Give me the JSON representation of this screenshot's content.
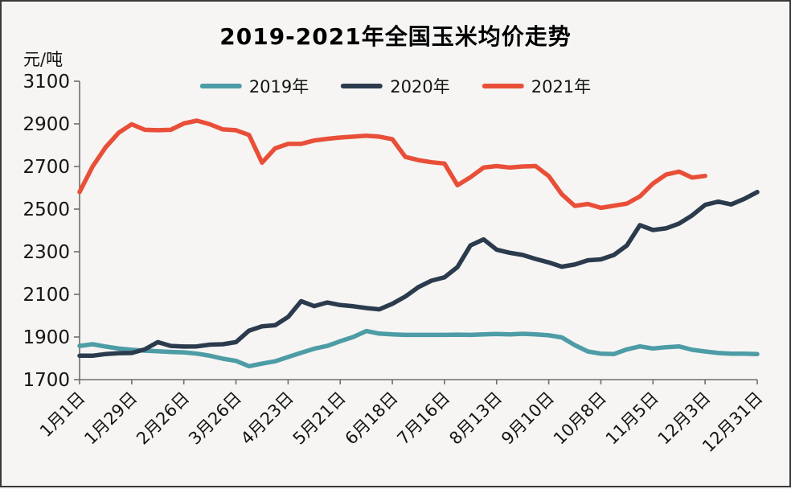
{
  "page": {
    "title": "2019-2021年全国玉米均价走势",
    "unit_label": "元/吨"
  },
  "legend": {
    "items": [
      {
        "label": "2019年",
        "color": "#4D9CA6"
      },
      {
        "label": "2020年",
        "color": "#2B3B4D"
      },
      {
        "label": "2021年",
        "color": "#E94F38"
      }
    ]
  },
  "chart_data": {
    "type": "line",
    "title": "2019-2021年全国玉米均价走势",
    "ylabel": "元/吨",
    "xlabel": "",
    "ylim": [
      1700,
      3100
    ],
    "y_ticks": [
      1700,
      1900,
      2100,
      2300,
      2500,
      2700,
      2900,
      3100
    ],
    "x_tick_labels": [
      "1月1日",
      "1月29日",
      "2月26日",
      "3月26日",
      "4月23日",
      "5月21日",
      "6月18日",
      "7月16日",
      "8月13日",
      "9月10日",
      "10月8日",
      "11月5日",
      "12月3日",
      "12月31日"
    ],
    "x_tick_week_indices": [
      0,
      4,
      8,
      12,
      16,
      20,
      24,
      28,
      32,
      36,
      40,
      44,
      48,
      52
    ],
    "x_unit": "weekly points, 52 weeks total",
    "grid": false,
    "legend_position": "top-center",
    "axis_color": "#6e6e6e",
    "tick_text_color": "#141414",
    "series": [
      {
        "name": "2019年",
        "color": "#4D9CA6",
        "values": [
          1858,
          1866,
          1855,
          1846,
          1840,
          1836,
          1833,
          1830,
          1828,
          1822,
          1812,
          1798,
          1788,
          1763,
          1775,
          1786,
          1806,
          1826,
          1845,
          1858,
          1880,
          1900,
          1928,
          1916,
          1912,
          1910,
          1910,
          1910,
          1910,
          1911,
          1910,
          1912,
          1914,
          1912,
          1915,
          1912,
          1908,
          1898,
          1862,
          1832,
          1822,
          1820,
          1842,
          1856,
          1846,
          1852,
          1856,
          1840,
          1832,
          1825,
          1822,
          1822,
          1820
        ]
      },
      {
        "name": "2020年",
        "color": "#2B3B4D",
        "values": [
          1812,
          1812,
          1820,
          1824,
          1825,
          1842,
          1876,
          1858,
          1855,
          1856,
          1864,
          1866,
          1876,
          1930,
          1950,
          1955,
          1994,
          2068,
          2045,
          2062,
          2050,
          2044,
          2036,
          2030,
          2056,
          2090,
          2134,
          2164,
          2180,
          2228,
          2330,
          2358,
          2310,
          2295,
          2285,
          2266,
          2250,
          2230,
          2240,
          2260,
          2264,
          2285,
          2330,
          2425,
          2402,
          2410,
          2432,
          2470,
          2520,
          2535,
          2522,
          2548,
          2580
        ]
      },
      {
        "name": "2021年",
        "color": "#E94F38",
        "values": [
          2580,
          2700,
          2790,
          2858,
          2898,
          2872,
          2870,
          2872,
          2902,
          2915,
          2898,
          2874,
          2870,
          2848,
          2718,
          2785,
          2806,
          2806,
          2822,
          2830,
          2836,
          2840,
          2844,
          2840,
          2828,
          2745,
          2730,
          2720,
          2714,
          2612,
          2650,
          2695,
          2702,
          2695,
          2700,
          2702,
          2655,
          2570,
          2515,
          2524,
          2506,
          2516,
          2526,
          2560,
          2620,
          2662,
          2676,
          2648,
          2656
        ]
      }
    ]
  }
}
